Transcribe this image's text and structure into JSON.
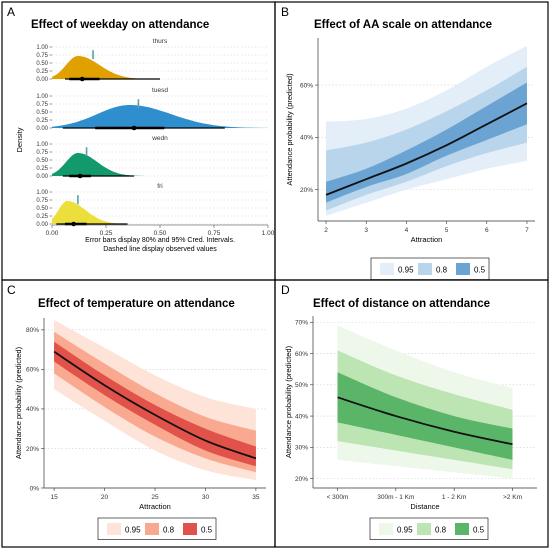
{
  "panels": {
    "A": {
      "letter": "A",
      "title": "Effect of weekday on attendance",
      "ylabel": "Density",
      "caption_line1": "Error bars display 80% and 95% Cred. Intervals.",
      "caption_line2": "Dashed line display observed values"
    },
    "B": {
      "letter": "B",
      "title": "Effect of AA scale on attendance"
    },
    "C": {
      "letter": "C",
      "title": "Effect of temperature on attendance"
    },
    "D": {
      "letter": "D",
      "title": "Effect of distance on attendance"
    }
  },
  "legend_labels": [
    "0.95",
    "0.8",
    "0.5"
  ],
  "chart_data": [
    {
      "panel": "A",
      "type": "area",
      "title": "Effect of weekday on attendance",
      "ylabel": "Density",
      "xlim": [
        0,
        1
      ],
      "x_ticks": [
        "0.00",
        "0.25",
        "0.50",
        "0.75",
        "1.00"
      ],
      "y_ticks": [
        "0.00",
        "0.25",
        "0.50",
        "0.75",
        "1.00"
      ],
      "series": [
        {
          "name": "thurs",
          "color": "#e0a100",
          "peak": 0.12,
          "scale_left": 0.055,
          "scale_right": 0.1,
          "observed": 0.19,
          "median": 0.14,
          "ci80": [
            0.08,
            0.22
          ],
          "ci95": [
            0.06,
            0.5
          ]
        },
        {
          "name": "tuesd",
          "color": "#2f8fce",
          "peak": 0.36,
          "scale_left": 0.15,
          "scale_right": 0.19,
          "observed": 0.4,
          "median": 0.38,
          "ci80": [
            0.2,
            0.52
          ],
          "ci95": [
            0.05,
            0.8
          ]
        },
        {
          "name": "wedn",
          "color": "#12996c",
          "peak": 0.12,
          "scale_left": 0.055,
          "scale_right": 0.09,
          "observed": 0.16,
          "median": 0.13,
          "ci80": [
            0.08,
            0.18
          ],
          "ci95": [
            0.05,
            0.38
          ]
        },
        {
          "name": "fri",
          "color": "#ecdf3b",
          "peak": 0.07,
          "scale_left": 0.04,
          "scale_right": 0.085,
          "observed": 0.12,
          "median": 0.1,
          "ci80": [
            0.06,
            0.16
          ],
          "ci95": [
            0.02,
            0.35
          ]
        }
      ]
    },
    {
      "panel": "B",
      "type": "line",
      "title": "Effect of AA scale on attendance",
      "xlabel": "Attraction",
      "ylabel": "Attendance probability (predicted)",
      "xlim": [
        1.8,
        7.2
      ],
      "ylim": [
        0.08,
        0.78
      ],
      "x_ticks": [
        2,
        3,
        4,
        5,
        6,
        7
      ],
      "y_ticks": [
        "20%",
        "40%",
        "60%"
      ],
      "y_tick_values": [
        0.2,
        0.4,
        0.6
      ],
      "x": [
        2,
        3,
        4,
        5,
        6,
        7
      ],
      "series": [
        {
          "name": "median",
          "values": [
            0.18,
            0.24,
            0.3,
            0.37,
            0.45,
            0.53
          ]
        }
      ],
      "bands": [
        {
          "level": "0.95",
          "color": "#e3eef8",
          "lower": [
            0.1,
            0.15,
            0.2,
            0.24,
            0.28,
            0.31
          ],
          "upper": [
            0.46,
            0.47,
            0.51,
            0.58,
            0.67,
            0.75
          ]
        },
        {
          "level": "0.8",
          "color": "#b8d5ec",
          "lower": [
            0.12,
            0.18,
            0.23,
            0.29,
            0.34,
            0.38
          ],
          "upper": [
            0.35,
            0.38,
            0.43,
            0.5,
            0.58,
            0.67
          ]
        },
        {
          "level": "0.5",
          "color": "#6ba4d2",
          "lower": [
            0.15,
            0.21,
            0.26,
            0.33,
            0.39,
            0.45
          ],
          "upper": [
            0.23,
            0.28,
            0.35,
            0.43,
            0.52,
            0.61
          ]
        }
      ],
      "legend": "bottom"
    },
    {
      "panel": "C",
      "type": "line",
      "title": "Effect of temperature on attendance",
      "xlabel": "Attraction",
      "ylabel": "Attendance probability (predicted)",
      "xlim": [
        14,
        36
      ],
      "ylim": [
        0,
        0.86
      ],
      "x_ticks": [
        15,
        20,
        25,
        30,
        35
      ],
      "y_ticks": [
        "0%",
        "20%",
        "40%",
        "60%",
        "80%"
      ],
      "y_tick_values": [
        0,
        0.2,
        0.4,
        0.6,
        0.8
      ],
      "x": [
        15,
        20,
        25,
        30,
        35
      ],
      "series": [
        {
          "name": "median",
          "values": [
            0.69,
            0.52,
            0.37,
            0.24,
            0.15
          ]
        }
      ],
      "bands": [
        {
          "level": "0.95",
          "color": "#fde3d8",
          "lower": [
            0.5,
            0.34,
            0.19,
            0.09,
            0.04
          ],
          "upper": [
            0.85,
            0.71,
            0.57,
            0.46,
            0.4
          ]
        },
        {
          "level": "0.8",
          "color": "#f8a98f",
          "lower": [
            0.58,
            0.41,
            0.26,
            0.15,
            0.08
          ],
          "upper": [
            0.79,
            0.63,
            0.48,
            0.36,
            0.29
          ]
        },
        {
          "level": "0.5",
          "color": "#e0524a",
          "lower": [
            0.64,
            0.47,
            0.32,
            0.19,
            0.11
          ],
          "upper": [
            0.74,
            0.57,
            0.42,
            0.3,
            0.21
          ]
        }
      ],
      "legend": "bottom"
    },
    {
      "panel": "D",
      "type": "line",
      "title": "Effect of distance on attendance",
      "xlabel": "Distance",
      "ylabel": "Attendance probability (predicted)",
      "ylim": [
        0.17,
        0.72
      ],
      "categories": [
        "< 300m",
        "300m - 1 Km",
        "1 - 2 Km",
        ">2 Km"
      ],
      "y_ticks": [
        "20%",
        "30%",
        "40%",
        "50%",
        "60%",
        "70%"
      ],
      "y_tick_values": [
        0.2,
        0.3,
        0.4,
        0.5,
        0.6,
        0.7
      ],
      "series": [
        {
          "name": "median",
          "values": [
            0.46,
            0.4,
            0.35,
            0.31
          ]
        }
      ],
      "bands": [
        {
          "level": "0.95",
          "color": "#edf8ea",
          "lower": [
            0.26,
            0.24,
            0.22,
            0.2
          ],
          "upper": [
            0.69,
            0.61,
            0.54,
            0.49
          ]
        },
        {
          "level": "0.8",
          "color": "#bde5b3",
          "lower": [
            0.32,
            0.29,
            0.26,
            0.23
          ],
          "upper": [
            0.61,
            0.53,
            0.47,
            0.42
          ]
        },
        {
          "level": "0.5",
          "color": "#5bb568",
          "lower": [
            0.38,
            0.34,
            0.3,
            0.26
          ],
          "upper": [
            0.54,
            0.46,
            0.4,
            0.36
          ]
        }
      ],
      "legend": "bottom"
    }
  ]
}
